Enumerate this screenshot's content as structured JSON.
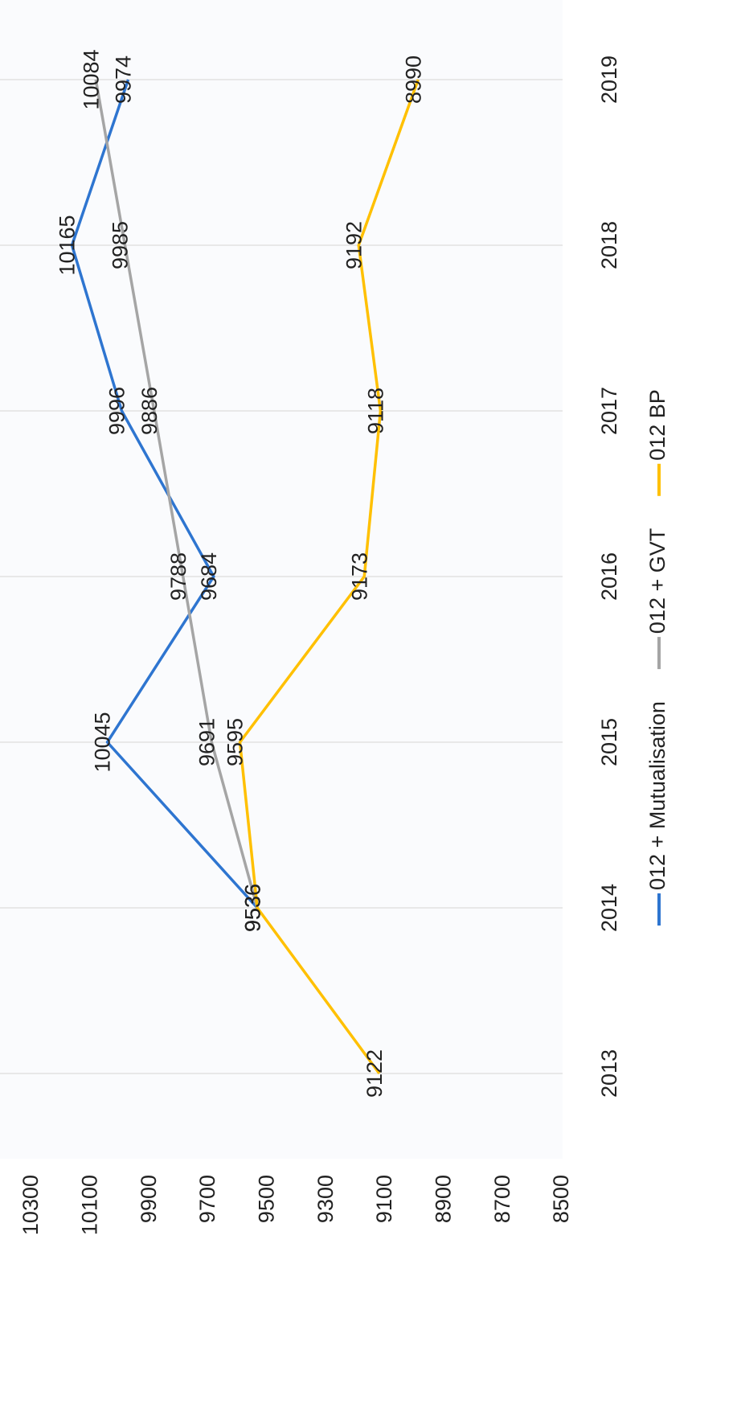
{
  "chart_data": {
    "type": "line",
    "categories": [
      "2013",
      "2014",
      "2015",
      "2016",
      "2017",
      "2018",
      "2019"
    ],
    "series": [
      {
        "name": "012 + Mutualisation",
        "color": "#2e75d0",
        "values": [
          null,
          9536,
          10045,
          9684,
          9996,
          10165,
          9974
        ]
      },
      {
        "name": "012 + GVT",
        "color": "#a5a5a5",
        "values": [
          null,
          9536,
          9691,
          9788,
          9886,
          9985,
          10084
        ]
      },
      {
        "name": "012 BP",
        "color": "#ffc000",
        "values": [
          9122,
          9536,
          9595,
          9173,
          9118,
          9192,
          8990
        ]
      }
    ],
    "ylim": [
      8500,
      10300
    ],
    "yticks": [
      8500,
      8700,
      8900,
      9100,
      9300,
      9500,
      9700,
      9900,
      10100,
      10300
    ],
    "legend": "bottom"
  }
}
